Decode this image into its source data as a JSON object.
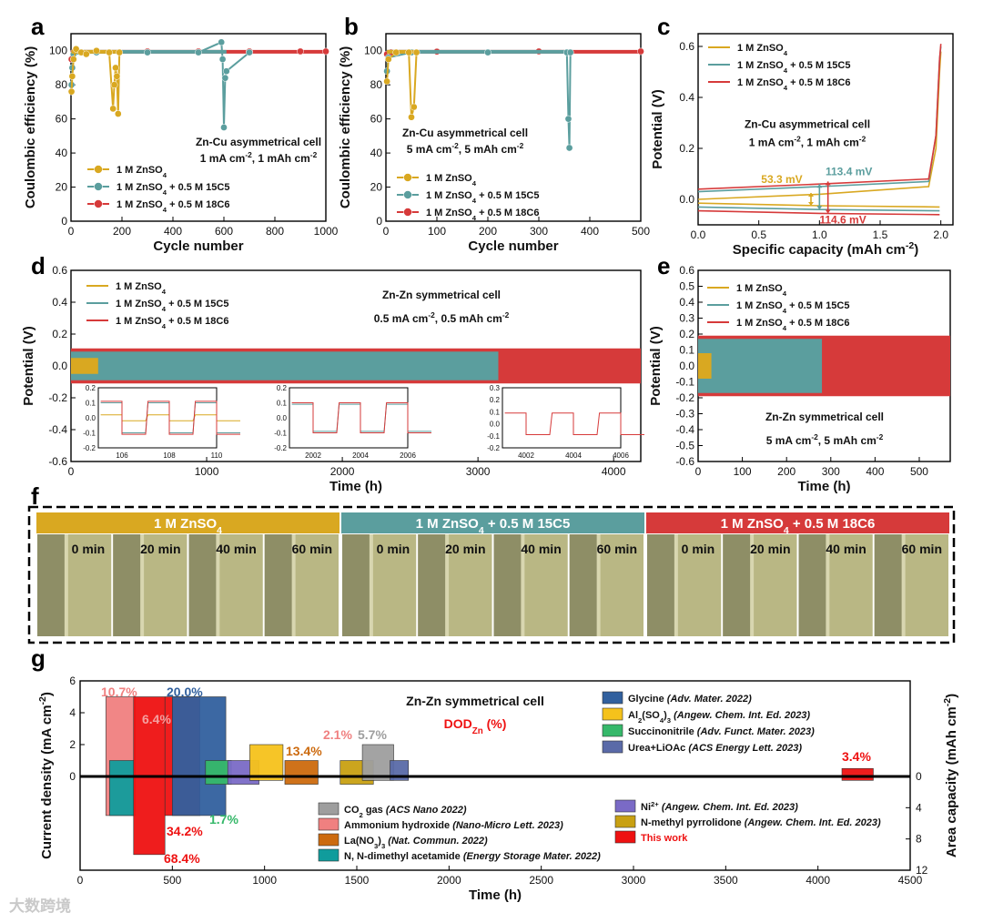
{
  "colors": {
    "znso4": "#d9a821",
    "c15c5": "#5b9e9e",
    "c18c6": "#d63a3a",
    "bar_this_work": "#ee1111",
    "bar_nh3": "#f08080",
    "bar_co2": "#9e9e9e",
    "bar_la": "#cc6a0e",
    "bar_dma": "#109c9c",
    "bar_glycine": "#31609e",
    "bar_al": "#f5c21b",
    "bar_sn": "#36b86a",
    "bar_urea": "#5a6aa8",
    "bar_ni": "#7a6ac6",
    "bar_nmp": "#c8a012"
  },
  "panel_letters": [
    "a",
    "b",
    "c",
    "d",
    "e",
    "f",
    "g"
  ],
  "legend": {
    "znso4": "1 M ZnSO4",
    "c15c5": "1 M ZnSO4 + 0.5 M 15C5",
    "c18c6": "1 M ZnSO4 + 0.5 M 18C6"
  },
  "chart_data": [
    {
      "panel": "a",
      "type": "scatter",
      "title": "Zn-Cu asymmetrical cell",
      "subtitle": "1 mA cm-2, 1 mAh cm-2",
      "xlabel": "Cycle number",
      "ylabel": "Coulombic efficiency (%)",
      "xlim": [
        0,
        1000
      ],
      "ylim": [
        0,
        110
      ],
      "xticks": [
        0,
        200,
        400,
        600,
        800,
        1000
      ],
      "yticks": [
        0,
        20,
        40,
        60,
        80,
        100
      ],
      "series": [
        {
          "name": "1 M ZnSO4",
          "x": [
            2,
            5,
            10,
            20,
            40,
            60,
            100,
            150,
            165,
            170,
            175,
            180,
            185,
            190
          ],
          "y": [
            76,
            85,
            95,
            101,
            99,
            98,
            100,
            99,
            66,
            80,
            90,
            85,
            63,
            99
          ]
        },
        {
          "name": "1 M ZnSO4 + 0.5 M 15C5",
          "x": [
            2,
            5,
            10,
            100,
            300,
            500,
            590,
            595,
            600,
            605,
            610,
            700
          ],
          "y": [
            80,
            90,
            98,
            99,
            99,
            99,
            105,
            95,
            55,
            84,
            88,
            99
          ]
        },
        {
          "name": "1 M ZnSO4 + 0.5 M 18C6",
          "x": [
            2,
            10,
            100,
            300,
            500,
            700,
            900,
            1000
          ],
          "y": [
            95,
            99,
            99.5,
            99.6,
            99.6,
            99.6,
            99.6,
            99.6
          ]
        }
      ]
    },
    {
      "panel": "b",
      "type": "scatter",
      "title": "Zn-Cu asymmetrical cell",
      "subtitle": "5 mA cm-2, 5 mAh cm-2",
      "xlabel": "Cycle number",
      "ylabel": "Coulombic efficiency (%)",
      "xlim": [
        0,
        500
      ],
      "ylim": [
        0,
        110
      ],
      "xticks": [
        0,
        100,
        200,
        300,
        400,
        500
      ],
      "yticks": [
        0,
        20,
        40,
        60,
        80,
        100
      ],
      "series": [
        {
          "name": "1 M ZnSO4",
          "x": [
            2,
            5,
            20,
            45,
            50,
            55,
            60
          ],
          "y": [
            82,
            95,
            99,
            99,
            61,
            67,
            99
          ]
        },
        {
          "name": "1 M ZnSO4 + 0.5 M 15C5",
          "x": [
            2,
            5,
            50,
            200,
            355,
            358,
            360,
            362
          ],
          "y": [
            88,
            96,
            99,
            99,
            99,
            60,
            43,
            99
          ]
        },
        {
          "name": "1 M ZnSO4 + 0.5 M 18C6",
          "x": [
            2,
            10,
            100,
            300,
            500
          ],
          "y": [
            98,
            99,
            99.5,
            99.6,
            99.6
          ]
        }
      ]
    },
    {
      "panel": "c",
      "type": "line",
      "title": "Zn-Cu asymmetrical cell",
      "subtitle": "1 mA cm-2, 1 mAh cm-2",
      "xlabel": "Specific capacity (mAh cm-2)",
      "ylabel": "Potential (V)",
      "xlim": [
        0,
        2.1
      ],
      "ylim": [
        -0.1,
        0.65
      ],
      "xticks": [
        0.0,
        0.5,
        1.0,
        1.5,
        2.0
      ],
      "yticks": [
        0.0,
        0.2,
        0.4,
        0.6
      ],
      "annotations": [
        "53.3 mV",
        "113.4 mV",
        "114.6 mV"
      ],
      "series": [
        {
          "name": "1 M ZnSO4",
          "x": [
            0,
            1.0,
            1.9,
            1.96,
            1.99,
            2.0
          ],
          "y": [
            0.0,
            0.02,
            0.05,
            0.2,
            0.5,
            0.58
          ]
        },
        {
          "name": "1 M ZnSO4 + 0.5 M 15C5",
          "x": [
            0,
            1.0,
            1.9,
            1.96,
            1.99,
            2.0
          ],
          "y": [
            0.03,
            0.05,
            0.07,
            0.25,
            0.55,
            0.6
          ]
        },
        {
          "name": "1 M ZnSO4 + 0.5 M 18C6",
          "x": [
            0,
            1.0,
            1.9,
            1.96,
            1.99,
            2.0
          ],
          "y": [
            0.04,
            0.06,
            0.08,
            0.25,
            0.55,
            0.61
          ]
        }
      ]
    },
    {
      "panel": "d",
      "type": "line",
      "title": "Zn-Zn symmetrical cell",
      "subtitle": "0.5 mA cm-2, 0.5 mAh cm-2",
      "xlabel": "Time (h)",
      "ylabel": "Potential (V)",
      "xlim": [
        0,
        4200
      ],
      "ylim": [
        -0.6,
        0.6
      ],
      "xticks": [
        0,
        1000,
        2000,
        3000,
        4000
      ],
      "yticks": [
        -0.6,
        -0.4,
        -0.2,
        0.0,
        0.2,
        0.4,
        0.6
      ],
      "voltage_range": [
        {
          "name": "1 M ZnSO4",
          "t_end": 200,
          "amplitude": 0.05
        },
        {
          "name": "1 M ZnSO4 + 0.5 M 15C5",
          "t_end": 3150,
          "amplitude": 0.09
        },
        {
          "name": "1 M ZnSO4 + 0.5 M 18C6",
          "t_end": 4200,
          "amplitude": 0.11
        }
      ],
      "insets": [
        {
          "xticks": [
            106,
            108,
            110
          ],
          "yticks": [
            0.2,
            0.1,
            0.0,
            -0.1,
            -0.2
          ]
        },
        {
          "xticks": [
            2002,
            2004,
            2006
          ],
          "yticks": [
            0.2,
            0.1,
            0.0,
            -0.1,
            -0.2
          ]
        },
        {
          "xticks": [
            4002,
            4004,
            4006
          ],
          "yticks": [
            0.3,
            0.2,
            0.1,
            0.0,
            -0.1,
            -0.2
          ]
        }
      ]
    },
    {
      "panel": "e",
      "type": "line",
      "title": "Zn-Zn symmetrical cell",
      "subtitle": "5 mA cm-2, 5 mAh cm-2",
      "xlabel": "Time (h)",
      "ylabel": "Potential (V)",
      "xlim": [
        0,
        570
      ],
      "ylim": [
        -0.6,
        0.6
      ],
      "xticks": [
        0,
        100,
        200,
        300,
        400,
        500
      ],
      "yticks": [
        -0.6,
        -0.5,
        -0.4,
        -0.3,
        -0.2,
        -0.1,
        0.0,
        0.1,
        0.2,
        0.3,
        0.4,
        0.5,
        0.6
      ],
      "voltage_range": [
        {
          "name": "1 M ZnSO4",
          "t_end": 30,
          "amplitude": 0.08
        },
        {
          "name": "1 M ZnSO4 + 0.5 M 15C5",
          "t_end": 280,
          "amplitude": 0.17
        },
        {
          "name": "1 M ZnSO4 + 0.5 M 18C6",
          "t_end": 570,
          "amplitude": 0.19
        }
      ]
    },
    {
      "panel": "g",
      "type": "bar",
      "title": "Zn-Zn symmetrical cell",
      "dod_label": "DODZn (%)",
      "xlabel": "Time (h)",
      "ylabel": "Current density (mA cm-2)",
      "ylabel_right": "Area capacity (mAh cm-2)",
      "xlim": [
        0,
        4500
      ],
      "ylim_top": [
        0,
        6
      ],
      "ylim_bottom": [
        0,
        12
      ],
      "xticks": [
        0,
        500,
        1000,
        1500,
        2000,
        2500,
        3000,
        3500,
        4000,
        4500
      ],
      "yticks": [
        0,
        2,
        4,
        6
      ],
      "yticks_right": [
        0,
        4,
        8,
        12
      ],
      "bars": [
        {
          "name": "Ammonium hydroxide",
          "ref": "(Nano-Micro Lett. 2023)",
          "color_key": "bar_nh3",
          "x0": 140,
          "x1": 300,
          "current": 5,
          "capacity": 5,
          "dod": "10.7%"
        },
        {
          "name": "N, N-dimethyl acetamide",
          "ref": "(Energy Storage Mater. 2022)",
          "color_key": "bar_dma",
          "x0": 160,
          "x1": 290,
          "current": 1,
          "capacity": 5,
          "dod": ""
        },
        {
          "name": "This work",
          "ref": "",
          "color_key": "bar_this_work",
          "x0": 290,
          "x1": 460,
          "current": 5,
          "capacity": 10,
          "dod": "68.4%"
        },
        {
          "name": "This work",
          "ref": "",
          "color_key": "bar_this_work",
          "x0": 460,
          "x1": 650,
          "current": 5,
          "capacity": 5,
          "dod": "34.2%"
        },
        {
          "name": "Glycine",
          "ref": "(Adv. Mater. 2022)",
          "color_key": "bar_glycine",
          "x0": 500,
          "x1": 790,
          "current": 5,
          "capacity": 5,
          "dod": "20.0%"
        },
        {
          "name": "Succinonitrile",
          "ref": "(Adv. Funct. Mater. 2023)",
          "color_key": "bar_sn",
          "x0": 680,
          "x1": 820,
          "current": 1,
          "capacity": 1,
          "dod": "1.7%"
        },
        {
          "name": "Ni2+",
          "ref": "(Angew. Chem. Int. Ed. 2023)",
          "color_key": "bar_ni",
          "x0": 800,
          "x1": 970,
          "current": 1,
          "capacity": 1,
          "dod": ""
        },
        {
          "name": "Al2(SO4)3",
          "ref": "(Angew. Chem. Int. Ed. 2023)",
          "color_key": "bar_al",
          "x0": 920,
          "x1": 1100,
          "current": 2,
          "capacity": 0.5,
          "dod": ""
        },
        {
          "name": "La(NO3)3",
          "ref": "(Nat. Commun. 2022)",
          "color_key": "bar_la",
          "x0": 1110,
          "x1": 1290,
          "current": 1,
          "capacity": 1,
          "dod": "13.4%"
        },
        {
          "name": "N-methyl pyrrolidone",
          "ref": "(Angew. Chem. Int. Ed. 2023)",
          "color_key": "bar_nmp",
          "x0": 1410,
          "x1": 1590,
          "current": 1,
          "capacity": 1,
          "dod": "2.1%"
        },
        {
          "name": "CO2 gas",
          "ref": "(ACS Nano 2022)",
          "color_key": "bar_co2",
          "x0": 1530,
          "x1": 1700,
          "current": 2,
          "capacity": 0.5,
          "dod": "5.7%"
        },
        {
          "name": "Urea+LiOAc",
          "ref": "(ACS Energy Lett. 2023)",
          "color_key": "bar_urea",
          "x0": 1680,
          "x1": 1780,
          "current": 1,
          "capacity": 0.5,
          "dod": ""
        },
        {
          "name": "This work",
          "ref": "",
          "color_key": "bar_this_work",
          "x0": 4130,
          "x1": 4300,
          "current": 0.5,
          "capacity": 0.5,
          "dod": "3.4%"
        }
      ],
      "extra_dod": [
        "6.4%"
      ],
      "legend_right": [
        {
          "name": "Glycine",
          "ref": "(Adv. Mater. 2022)",
          "color_key": "bar_glycine"
        },
        {
          "name": "Al2(SO4)3",
          "ref": "(Angew. Chem. Int. Ed. 2023)",
          "color_key": "bar_al"
        },
        {
          "name": "Succinonitrile",
          "ref": "(Adv. Funct. Mater. 2023)",
          "color_key": "bar_sn"
        },
        {
          "name": "Urea+LiOAc",
          "ref": "(ACS Energy Lett. 2023)",
          "color_key": "bar_urea"
        }
      ],
      "legend_bottom_left": [
        {
          "name": "CO2 gas",
          "ref": "(ACS Nano 2022)",
          "color_key": "bar_co2"
        },
        {
          "name": "Ammonium hydroxide",
          "ref": "(Nano-Micro Lett. 2023)",
          "color_key": "bar_nh3"
        },
        {
          "name": "La(NO3)3",
          "ref": "(Nat. Commun. 2022)",
          "color_key": "bar_la"
        },
        {
          "name": "N, N-dimethyl acetamide",
          "ref": "(Energy Storage Mater. 2022)",
          "color_key": "bar_dma"
        }
      ],
      "legend_bottom_right": [
        {
          "name": "Ni2+",
          "ref": "(Angew. Chem. Int. Ed. 2023)",
          "color_key": "bar_ni"
        },
        {
          "name": "N-methyl pyrrolidone",
          "ref": "(Angew. Chem. Int. Ed. 2023)",
          "color_key": "bar_nmp"
        },
        {
          "name": "This work",
          "ref": "",
          "color_key": "bar_this_work"
        }
      ]
    }
  ],
  "panel_f": {
    "groups": [
      {
        "label": "1 M ZnSO4",
        "color_key": "znso4",
        "times": [
          "0 min",
          "20 min",
          "40 min",
          "60 min"
        ]
      },
      {
        "label": "1 M ZnSO4 + 0.5 M 15C5",
        "color_key": "c15c5",
        "times": [
          "0 min",
          "20 min",
          "40 min",
          "60 min"
        ]
      },
      {
        "label": "1 M ZnSO4 + 0.5 M 18C6",
        "color_key": "c18c6",
        "times": [
          "0 min",
          "20 min",
          "40 min",
          "60 min"
        ]
      }
    ]
  },
  "watermark": "大数跨境"
}
